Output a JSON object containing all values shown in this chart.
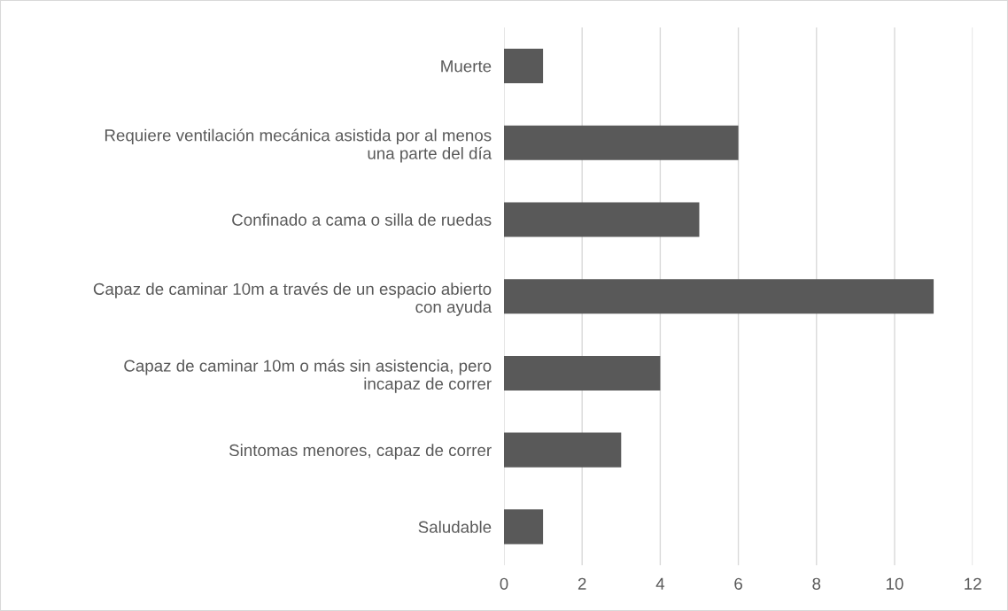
{
  "chart_data": {
    "type": "bar",
    "orientation": "horizontal",
    "categories": [
      "Muerte",
      "Requiere ventilación mecánica asistida por al menos una parte del día",
      "Confinado a cama o silla de ruedas",
      "Capaz de caminar 10m a través de un espacio abierto con ayuda",
      "Capaz de caminar 10m o más sin asistencia, pero incapaz de correr",
      "Sintomas menores, capaz de correr",
      "Saludable"
    ],
    "values": [
      1,
      6,
      5,
      11,
      4,
      3,
      1
    ],
    "color": "#595959",
    "xlim": [
      0,
      12
    ],
    "xticks": [
      0,
      2,
      4,
      6,
      8,
      10,
      12
    ],
    "grid": "x"
  }
}
